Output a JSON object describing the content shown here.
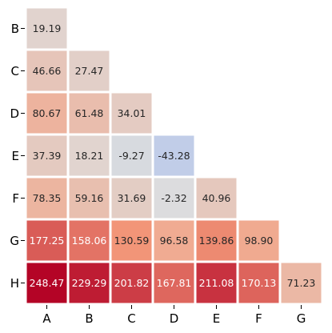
{
  "chart_data": {
    "type": "heatmap",
    "title": "",
    "xlabel": "",
    "ylabel": "",
    "x_categories": [
      "A",
      "B",
      "C",
      "D",
      "E",
      "F",
      "G"
    ],
    "y_categories": [
      "B",
      "C",
      "D",
      "E",
      "F",
      "G",
      "H"
    ],
    "mask": "upper triangle (lower-triangular matrix shown)",
    "values": [
      [
        "19.19"
      ],
      [
        "46.66",
        "27.47"
      ],
      [
        "80.67",
        "61.48",
        "34.01"
      ],
      [
        "37.39",
        "18.21",
        "-9.27",
        "-43.28"
      ],
      [
        "78.35",
        "59.16",
        "31.69",
        "-2.32",
        "40.96"
      ],
      [
        "177.25",
        "158.06",
        "130.59",
        "96.58",
        "139.86",
        "98.90"
      ],
      [
        "248.47",
        "229.29",
        "201.82",
        "167.81",
        "211.08",
        "170.13",
        "71.23"
      ]
    ],
    "colormap": "coolwarm",
    "color_range": [
      -248.47,
      248.47
    ],
    "cell_border_color": "#ffffff",
    "grid": false,
    "colorbar": false
  }
}
